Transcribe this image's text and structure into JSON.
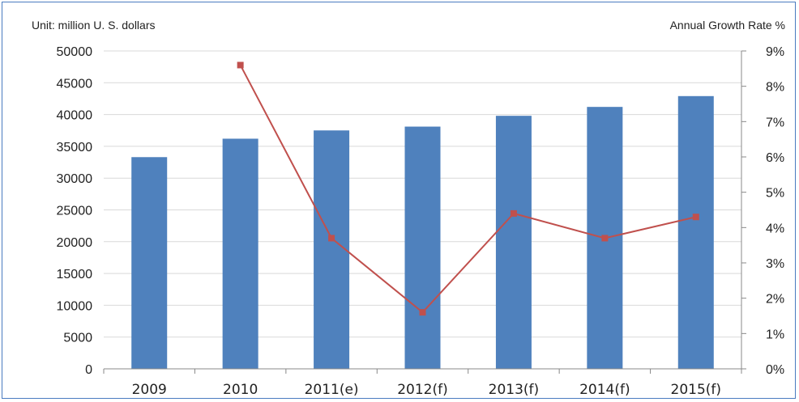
{
  "chart_data": {
    "type": "bar+line",
    "title": "",
    "left_axis_label": "Unit: million U. S. dollars",
    "right_axis_label": "Annual Growth Rate %",
    "categories": [
      "2009",
      "2010",
      "2011(e)",
      "2012(f)",
      "2013(f)",
      "2014(f)",
      "2015(f)"
    ],
    "bars": {
      "values": [
        33300,
        36200,
        37500,
        38100,
        39800,
        41200,
        42900
      ],
      "color": "#4f81bd"
    },
    "line": {
      "values": [
        null,
        8.6,
        3.7,
        1.6,
        4.4,
        3.7,
        4.3
      ],
      "color": "#c0504d"
    },
    "y_left": {
      "min": 0,
      "max": 50000,
      "step": 5000,
      "ticks": [
        "0",
        "5000",
        "10000",
        "15000",
        "20000",
        "25000",
        "30000",
        "35000",
        "40000",
        "45000",
        "50000"
      ]
    },
    "y_right": {
      "min": 0,
      "max": 9,
      "step": 1,
      "ticks": [
        "0%",
        "1%",
        "2%",
        "3%",
        "4%",
        "5%",
        "6%",
        "7%",
        "8%",
        "9%"
      ]
    },
    "grid": true,
    "legend": "none"
  }
}
